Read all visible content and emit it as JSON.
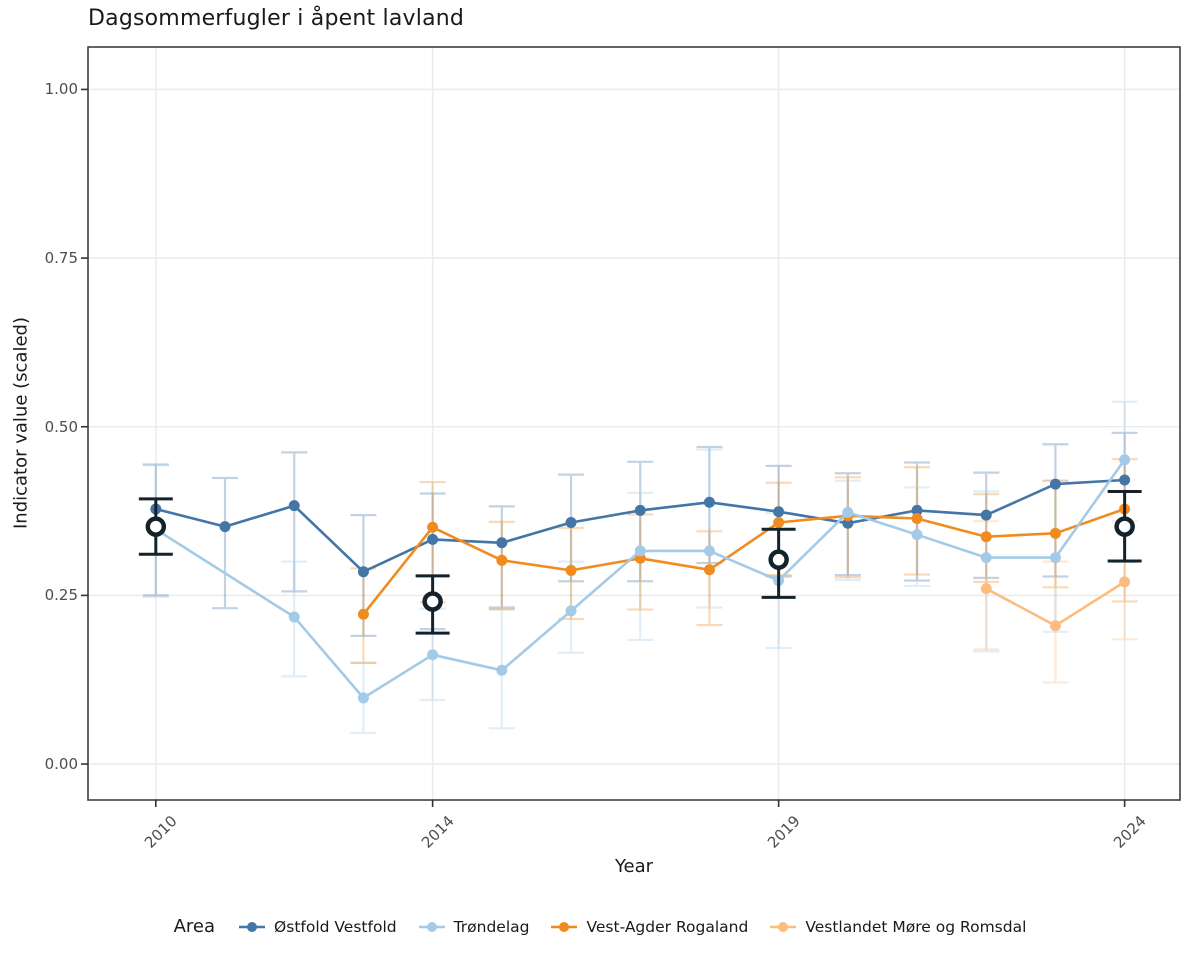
{
  "title": "Dagsommerfugler i åpent lavland",
  "axes": {
    "x_label": "Year",
    "y_label": "Indicator value (scaled)",
    "x_ticks": [
      {
        "value": 2010,
        "label": "2010"
      },
      {
        "value": 2014,
        "label": "2014"
      },
      {
        "value": 2019,
        "label": "2019"
      },
      {
        "value": 2024,
        "label": "2024"
      }
    ],
    "y_ticks": [
      {
        "value": 1.0,
        "label": "1.00"
      },
      {
        "value": 0.75,
        "label": "0.75"
      },
      {
        "value": 0.5,
        "label": "0.50"
      },
      {
        "value": 0.25,
        "label": "0.25"
      },
      {
        "value": 0.0,
        "label": "0.00"
      }
    ]
  },
  "legend": {
    "title": "Area"
  },
  "chart_data": {
    "type": "line",
    "xlim": [
      2009.02,
      2024.8
    ],
    "ylim": [
      -0.0533,
      1.0629
    ],
    "grid": "major-only",
    "legend_position": "bottom",
    "years": [
      2010,
      2011,
      2012,
      2013,
      2014,
      2015,
      2016,
      2017,
      2018,
      2019,
      2020,
      2021,
      2022,
      2023,
      2024
    ],
    "series": [
      {
        "name": "Østfold Vestfold",
        "color": "#4375A6",
        "values": [
          0.378,
          0.352,
          0.383,
          0.285,
          0.333,
          0.328,
          0.358,
          0.376,
          0.388,
          0.374,
          0.357,
          0.376,
          0.369,
          0.415,
          0.421
        ],
        "lo": [
          0.25,
          0.231,
          0.256,
          0.19,
          0.2,
          0.232,
          0.271,
          0.271,
          0.298,
          0.278,
          0.28,
          0.272,
          0.276,
          0.278,
          0.3
        ],
        "hi": [
          0.444,
          0.424,
          0.462,
          0.369,
          0.401,
          0.382,
          0.429,
          0.448,
          0.47,
          0.442,
          0.431,
          0.447,
          0.432,
          0.474,
          0.491
        ]
      },
      {
        "name": "Trøndelag",
        "color": "#A3CBE8",
        "values": [
          0.348,
          null,
          0.218,
          0.098,
          0.162,
          0.139,
          0.227,
          0.316,
          0.316,
          0.272,
          0.373,
          0.34,
          0.306,
          0.306,
          0.451
        ],
        "lo": [
          0.248,
          null,
          0.13,
          0.046,
          0.095,
          0.053,
          0.165,
          0.184,
          0.232,
          0.172,
          0.273,
          0.264,
          0.167,
          0.196,
          0.3
        ],
        "hi": [
          0.443,
          null,
          0.3,
          0.15,
          0.23,
          0.23,
          0.3,
          0.402,
          0.466,
          0.372,
          0.42,
          0.41,
          0.404,
          0.42,
          0.537
        ]
      },
      {
        "name": "Vest-Agder Rogaland",
        "color": "#F08C1F",
        "values": [
          null,
          null,
          null,
          0.222,
          0.351,
          0.302,
          0.287,
          0.305,
          0.288,
          0.358,
          0.368,
          0.364,
          0.337,
          0.342,
          0.378
        ],
        "lo": [
          null,
          null,
          null,
          0.15,
          0.24,
          0.229,
          0.215,
          0.229,
          0.206,
          0.28,
          0.277,
          0.281,
          0.27,
          0.262,
          0.241
        ],
        "hi": [
          null,
          null,
          null,
          0.29,
          0.418,
          0.359,
          0.35,
          0.37,
          0.345,
          0.417,
          0.425,
          0.44,
          0.4,
          0.42,
          0.452
        ]
      },
      {
        "name": "Vestlandet Møre og Romsdal",
        "color": "#FBBD7F",
        "values": [
          null,
          null,
          null,
          null,
          null,
          null,
          null,
          null,
          null,
          null,
          null,
          null,
          0.26,
          0.205,
          0.27
        ],
        "lo": [
          null,
          null,
          null,
          null,
          null,
          null,
          null,
          null,
          null,
          null,
          null,
          null,
          0.17,
          0.121,
          0.185
        ],
        "hi": [
          null,
          null,
          null,
          null,
          null,
          null,
          null,
          null,
          null,
          null,
          null,
          null,
          0.36,
          0.3,
          0.36
        ]
      }
    ],
    "summary_points": {
      "name": "overall-indicator",
      "color": "#14222C",
      "x": [
        2010,
        2014,
        2019,
        2024
      ],
      "y": [
        0.352,
        0.241,
        0.303,
        0.352
      ],
      "lo": [
        0.311,
        0.194,
        0.247,
        0.301
      ],
      "hi": [
        0.393,
        0.279,
        0.348,
        0.404
      ]
    }
  },
  "style": {
    "panel_border": "#3F3F3F",
    "gridline": "#ECECEC",
    "tick_mark": "#333333",
    "tick_text": "#4D4D4D",
    "errorbar_alpha": 0.32
  }
}
